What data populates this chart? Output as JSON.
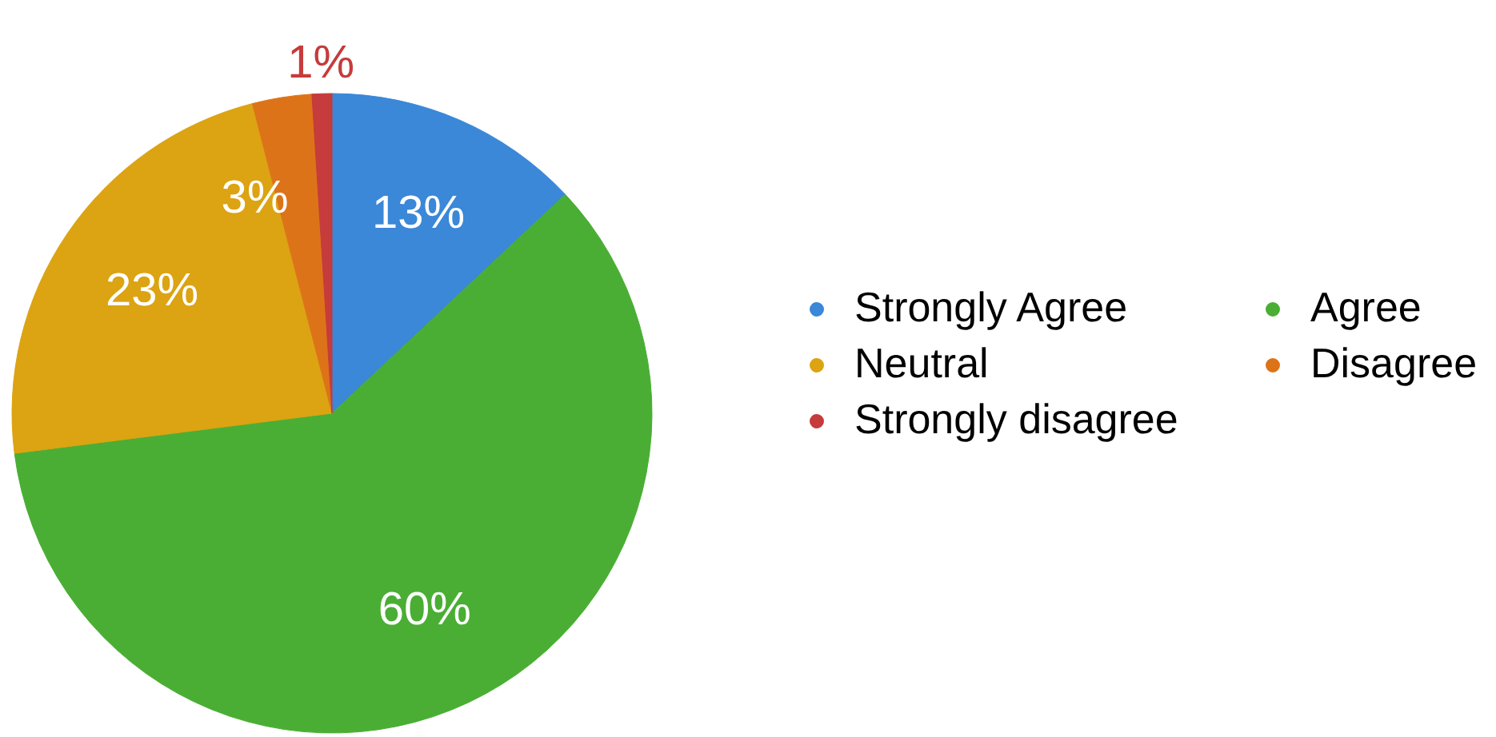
{
  "chart_data": {
    "type": "pie",
    "categories": [
      "Strongly Agree",
      "Agree",
      "Neutral",
      "Disagree",
      "Strongly disagree"
    ],
    "values": [
      13,
      60,
      23,
      3,
      1
    ],
    "colors": [
      "#3b87d8",
      "#4aae34",
      "#dca312",
      "#dd7319",
      "#c63b3b"
    ],
    "value_labels": [
      "13%",
      "60%",
      "23%",
      "3%",
      "1%"
    ],
    "legend": "right"
  }
}
